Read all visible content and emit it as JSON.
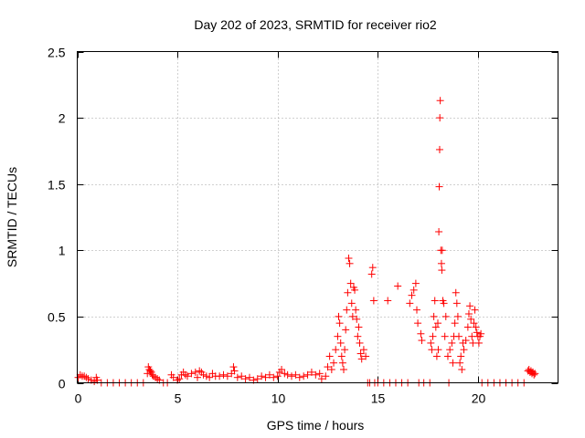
{
  "chart_data": {
    "type": "scatter",
    "title": "Day 202 of 2023, SRMTID for receiver rio2",
    "xlabel": "GPS time / hours",
    "ylabel": "SRMTID / TECUs",
    "xlim": [
      0,
      24
    ],
    "ylim": [
      0,
      2.5
    ],
    "xticks": [
      0,
      5,
      10,
      15,
      20
    ],
    "yticks": [
      0,
      0.5,
      1,
      1.5,
      2,
      2.5
    ],
    "xtick_labels": [
      "0",
      "5",
      "10",
      "15",
      "20"
    ],
    "ytick_labels": [
      "0",
      "0.5",
      "1",
      "1.5",
      "2",
      "2.5"
    ],
    "grid": true,
    "marker": "+",
    "series_color": "#ff0000",
    "series": [
      {
        "name": "SRMTID",
        "points": [
          [
            0.05,
            0.04
          ],
          [
            0.15,
            0.06
          ],
          [
            0.25,
            0.05
          ],
          [
            0.35,
            0.05
          ],
          [
            0.45,
            0.04
          ],
          [
            0.55,
            0.03
          ],
          [
            0.7,
            0.02
          ],
          [
            0.85,
            0.01
          ],
          [
            1.0,
            0.02
          ],
          [
            0.95,
            0.04
          ],
          [
            1.2,
            0.0
          ],
          [
            1.5,
            0.0
          ],
          [
            1.8,
            0.0
          ],
          [
            2.1,
            0.0
          ],
          [
            2.4,
            0.0
          ],
          [
            2.7,
            0.0
          ],
          [
            3.0,
            0.0
          ],
          [
            3.3,
            0.0
          ],
          [
            3.5,
            0.07
          ],
          [
            3.55,
            0.12
          ],
          [
            3.6,
            0.1
          ],
          [
            3.65,
            0.09
          ],
          [
            3.7,
            0.08
          ],
          [
            3.75,
            0.06
          ],
          [
            3.8,
            0.05
          ],
          [
            3.9,
            0.04
          ],
          [
            4.0,
            0.03
          ],
          [
            4.1,
            0.02
          ],
          [
            4.3,
            0.0
          ],
          [
            4.5,
            0.0
          ],
          [
            4.7,
            0.06
          ],
          [
            4.8,
            0.04
          ],
          [
            5.0,
            0.02
          ],
          [
            5.1,
            0.03
          ],
          [
            5.2,
            0.06
          ],
          [
            5.3,
            0.08
          ],
          [
            5.4,
            0.06
          ],
          [
            5.5,
            0.05
          ],
          [
            5.7,
            0.07
          ],
          [
            5.9,
            0.08
          ],
          [
            6.0,
            0.04
          ],
          [
            6.1,
            0.09
          ],
          [
            6.2,
            0.08
          ],
          [
            6.3,
            0.06
          ],
          [
            6.45,
            0.05
          ],
          [
            6.6,
            0.04
          ],
          [
            6.75,
            0.07
          ],
          [
            6.9,
            0.05
          ],
          [
            7.1,
            0.05
          ],
          [
            7.3,
            0.06
          ],
          [
            7.5,
            0.05
          ],
          [
            7.7,
            0.07
          ],
          [
            7.8,
            0.12
          ],
          [
            7.85,
            0.09
          ],
          [
            8.0,
            0.04
          ],
          [
            8.2,
            0.05
          ],
          [
            8.4,
            0.03
          ],
          [
            8.6,
            0.04
          ],
          [
            8.8,
            0.02
          ],
          [
            9.0,
            0.03
          ],
          [
            9.2,
            0.05
          ],
          [
            9.4,
            0.04
          ],
          [
            9.6,
            0.06
          ],
          [
            9.8,
            0.04
          ],
          [
            10.0,
            0.05
          ],
          [
            10.1,
            0.08
          ],
          [
            10.2,
            0.1
          ],
          [
            10.35,
            0.07
          ],
          [
            10.5,
            0.06
          ],
          [
            10.7,
            0.05
          ],
          [
            10.9,
            0.06
          ],
          [
            11.1,
            0.04
          ],
          [
            11.3,
            0.05
          ],
          [
            11.5,
            0.06
          ],
          [
            11.7,
            0.08
          ],
          [
            11.9,
            0.06
          ],
          [
            12.1,
            0.07
          ],
          [
            12.2,
            0.03
          ],
          [
            12.4,
            0.05
          ],
          [
            12.5,
            0.12
          ],
          [
            12.6,
            0.2
          ],
          [
            12.7,
            0.1
          ],
          [
            12.8,
            0.15
          ],
          [
            12.9,
            0.25
          ],
          [
            13.0,
            0.35
          ],
          [
            13.05,
            0.5
          ],
          [
            13.1,
            0.45
          ],
          [
            13.15,
            0.3
          ],
          [
            13.2,
            0.2
          ],
          [
            13.25,
            0.15
          ],
          [
            13.3,
            0.1
          ],
          [
            13.35,
            0.25
          ],
          [
            13.4,
            0.4
          ],
          [
            13.45,
            0.55
          ],
          [
            13.5,
            0.68
          ],
          [
            13.55,
            0.94
          ],
          [
            13.6,
            0.9
          ],
          [
            13.65,
            0.75
          ],
          [
            13.7,
            0.6
          ],
          [
            13.75,
            0.5
          ],
          [
            13.8,
            0.72
          ],
          [
            13.85,
            0.7
          ],
          [
            13.9,
            0.55
          ],
          [
            13.95,
            0.48
          ],
          [
            14.0,
            0.35
          ],
          [
            14.05,
            0.42
          ],
          [
            14.1,
            0.3
          ],
          [
            14.15,
            0.22
          ],
          [
            14.2,
            0.18
          ],
          [
            14.3,
            0.25
          ],
          [
            14.4,
            0.2
          ],
          [
            14.5,
            0.0
          ],
          [
            14.6,
            0.0
          ],
          [
            14.7,
            0.82
          ],
          [
            14.75,
            0.87
          ],
          [
            14.8,
            0.62
          ],
          [
            14.85,
            0.0
          ],
          [
            15.0,
            0.0
          ],
          [
            15.3,
            0.0
          ],
          [
            15.5,
            0.62
          ],
          [
            15.6,
            0.0
          ],
          [
            15.9,
            0.0
          ],
          [
            16.0,
            0.73
          ],
          [
            16.2,
            0.0
          ],
          [
            16.5,
            0.0
          ],
          [
            16.6,
            0.6
          ],
          [
            16.7,
            0.66
          ],
          [
            16.8,
            0.7
          ],
          [
            16.9,
            0.75
          ],
          [
            16.95,
            0.55
          ],
          [
            17.0,
            0.45
          ],
          [
            17.05,
            0.0
          ],
          [
            17.15,
            0.37
          ],
          [
            17.2,
            0.32
          ],
          [
            17.3,
            0.0
          ],
          [
            17.6,
            0.0
          ],
          [
            17.65,
            0.3
          ],
          [
            17.7,
            0.25
          ],
          [
            17.75,
            0.35
          ],
          [
            17.8,
            0.5
          ],
          [
            17.85,
            0.62
          ],
          [
            17.9,
            0.42
          ],
          [
            17.95,
            0.2
          ],
          [
            18.0,
            0.45
          ],
          [
            18.02,
            0.25
          ],
          [
            18.05,
            1.14
          ],
          [
            18.07,
            1.48
          ],
          [
            18.09,
            1.76
          ],
          [
            18.1,
            2.0
          ],
          [
            18.12,
            2.13
          ],
          [
            18.15,
            1.0
          ],
          [
            18.18,
            0.9
          ],
          [
            18.2,
            0.85
          ],
          [
            18.22,
            1.0
          ],
          [
            18.25,
            0.62
          ],
          [
            18.3,
            0.6
          ],
          [
            18.35,
            0.35
          ],
          [
            18.4,
            0.5
          ],
          [
            18.5,
            0.2
          ],
          [
            18.55,
            0.0
          ],
          [
            18.6,
            0.25
          ],
          [
            18.7,
            0.3
          ],
          [
            18.75,
            0.15
          ],
          [
            18.8,
            0.35
          ],
          [
            18.85,
            0.45
          ],
          [
            18.9,
            0.68
          ],
          [
            18.95,
            0.6
          ],
          [
            19.0,
            0.5
          ],
          [
            19.05,
            0.35
          ],
          [
            19.1,
            0.15
          ],
          [
            19.15,
            0.2
          ],
          [
            19.2,
            0.1
          ],
          [
            19.25,
            0.3
          ],
          [
            19.3,
            0.25
          ],
          [
            19.4,
            0.32
          ],
          [
            19.5,
            0.42
          ],
          [
            19.55,
            0.52
          ],
          [
            19.6,
            0.58
          ],
          [
            19.65,
            0.48
          ],
          [
            19.7,
            0.35
          ],
          [
            19.75,
            0.3
          ],
          [
            19.8,
            0.45
          ],
          [
            19.85,
            0.55
          ],
          [
            19.9,
            0.42
          ],
          [
            19.95,
            0.38
          ],
          [
            20.0,
            0.35
          ],
          [
            20.05,
            0.3
          ],
          [
            20.1,
            0.35
          ],
          [
            20.15,
            0.37
          ],
          [
            20.2,
            0.0
          ],
          [
            20.5,
            0.0
          ],
          [
            20.8,
            0.0
          ],
          [
            21.1,
            0.0
          ],
          [
            21.4,
            0.0
          ],
          [
            21.7,
            0.0
          ],
          [
            22.0,
            0.0
          ],
          [
            22.3,
            0.0
          ],
          [
            22.5,
            0.09
          ],
          [
            22.55,
            0.1
          ],
          [
            22.6,
            0.08
          ],
          [
            22.65,
            0.09
          ],
          [
            22.7,
            0.07
          ],
          [
            22.75,
            0.08
          ],
          [
            22.8,
            0.06
          ],
          [
            22.85,
            0.07
          ]
        ]
      }
    ]
  }
}
